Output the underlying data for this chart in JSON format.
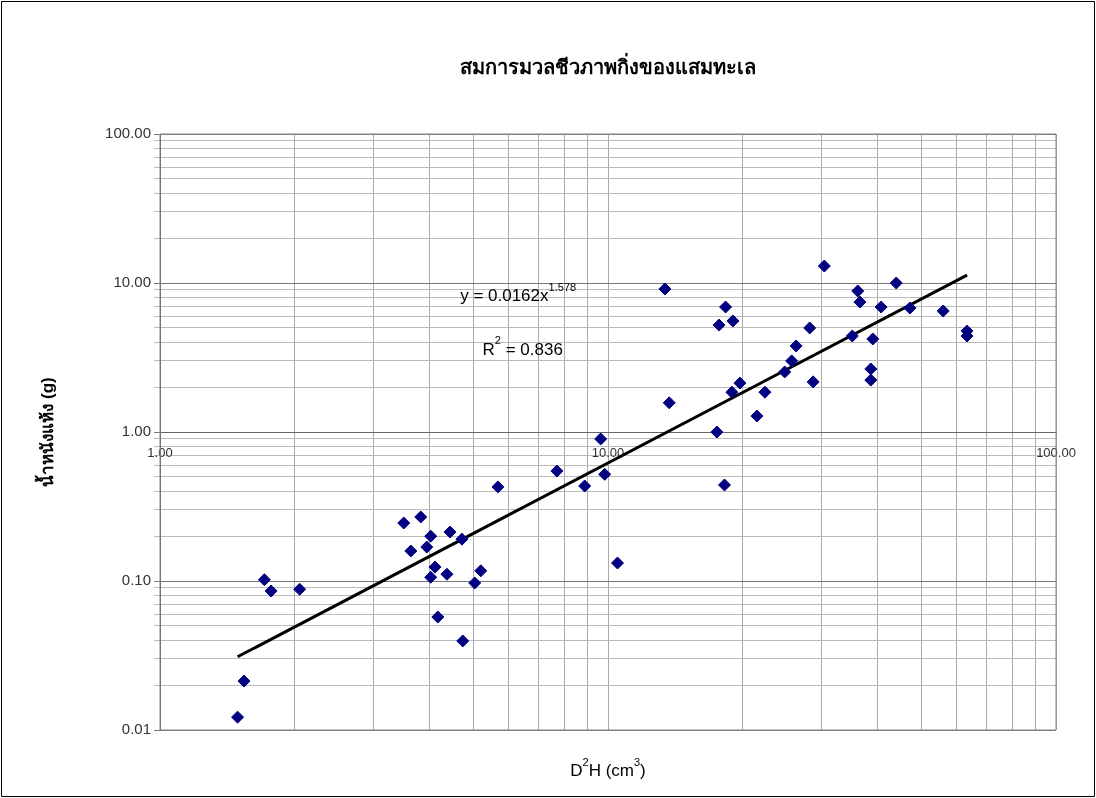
{
  "chart_data": {
    "type": "scatter",
    "title": "สมการมวลชีวภาพกิ่งของแสมทะเล",
    "xlabel": "D$^{2}$H (cm$^{3}$)",
    "ylabel": "น้ำหนังแห้ง (g)",
    "annotations": [
      "y = 0.0162x$^{1.578}$",
      "R$^{2}$ = 0.836"
    ],
    "log": "xy",
    "grid": true,
    "marker": "diamond",
    "legend": false,
    "xlim": [
      1,
      100
    ],
    "ylim": [
      0.01,
      100
    ],
    "xticks": [
      {
        "value": 1,
        "label": "1.00"
      },
      {
        "value": 2,
        "label": null
      },
      {
        "value": 3,
        "label": null
      },
      {
        "value": 4,
        "label": null
      },
      {
        "value": 5,
        "label": null
      },
      {
        "value": 6,
        "label": null
      },
      {
        "value": 7,
        "label": null
      },
      {
        "value": 8,
        "label": null
      },
      {
        "value": 9,
        "label": null
      },
      {
        "value": 10,
        "label": "10.00"
      },
      {
        "value": 20,
        "label": null
      },
      {
        "value": 30,
        "label": null
      },
      {
        "value": 40,
        "label": null
      },
      {
        "value": 50,
        "label": null
      },
      {
        "value": 60,
        "label": null
      },
      {
        "value": 70,
        "label": null
      },
      {
        "value": 80,
        "label": null
      },
      {
        "value": 90,
        "label": null
      },
      {
        "value": 100,
        "label": "100.00"
      }
    ],
    "yticks": [
      {
        "value": 0.01,
        "label": "0.01"
      },
      {
        "value": 0.02,
        "label": null
      },
      {
        "value": 0.03,
        "label": null
      },
      {
        "value": 0.04,
        "label": null
      },
      {
        "value": 0.05,
        "label": null
      },
      {
        "value": 0.06,
        "label": null
      },
      {
        "value": 0.07,
        "label": null
      },
      {
        "value": 0.08,
        "label": null
      },
      {
        "value": 0.09,
        "label": null
      },
      {
        "value": 0.1,
        "label": "0.10"
      },
      {
        "value": 0.2,
        "label": null
      },
      {
        "value": 0.3,
        "label": null
      },
      {
        "value": 0.4,
        "label": null
      },
      {
        "value": 0.5,
        "label": null
      },
      {
        "value": 0.6,
        "label": null
      },
      {
        "value": 0.7,
        "label": null
      },
      {
        "value": 0.8,
        "label": null
      },
      {
        "value": 0.9,
        "label": null
      },
      {
        "value": 1,
        "label": "1.00"
      },
      {
        "value": 2,
        "label": null
      },
      {
        "value": 3,
        "label": null
      },
      {
        "value": 4,
        "label": null
      },
      {
        "value": 5,
        "label": null
      },
      {
        "value": 6,
        "label": null
      },
      {
        "value": 7,
        "label": null
      },
      {
        "value": 8,
        "label": null
      },
      {
        "value": 9,
        "label": null
      },
      {
        "value": 10,
        "label": "10.00"
      },
      {
        "value": 20,
        "label": null
      },
      {
        "value": 30,
        "label": null
      },
      {
        "value": 40,
        "label": null
      },
      {
        "value": 50,
        "label": null
      },
      {
        "value": 60,
        "label": null
      },
      {
        "value": 70,
        "label": null
      },
      {
        "value": 80,
        "label": null
      },
      {
        "value": 90,
        "label": null
      },
      {
        "value": 100,
        "label": "100.00"
      }
    ],
    "series": [
      {
        "color": "#000080",
        "x": [
          1.49,
          1.54,
          1.71,
          1.77,
          2.05,
          3.5,
          3.63,
          3.82,
          3.94,
          4.02,
          4.02,
          4.11,
          4.17,
          4.37,
          4.44,
          4.72,
          4.74,
          5.04,
          5.2,
          5.68,
          7.69,
          8.87,
          9.63,
          9.83,
          10.5,
          13.4,
          13.7,
          17.5,
          17.7,
          18.3,
          18.2,
          19.0,
          18.9,
          19.7,
          22.4,
          21.5,
          24.8,
          25.7,
          26.3,
          28.2,
          28.7,
          30.4,
          36.1,
          36.5,
          35.1,
          39.0,
          40.7,
          44.0,
          47.2,
          38.6,
          38.6,
          56.0,
          63.3,
          63.3
        ],
        "values": [
          0.0122,
          0.0213,
          0.102,
          0.0857,
          0.088,
          0.245,
          0.159,
          0.269,
          0.169,
          0.2,
          0.106,
          0.124,
          0.0573,
          0.111,
          0.213,
          0.191,
          0.0396,
          0.097,
          0.117,
          0.428,
          0.547,
          0.434,
          0.898,
          0.52,
          0.132,
          9.12,
          1.57,
          1.0,
          5.22,
          6.9,
          0.441,
          5.56,
          1.85,
          2.13,
          1.85,
          1.28,
          2.53,
          3.0,
          3.78,
          4.99,
          2.17,
          13.0,
          8.84,
          7.45,
          4.41,
          4.21,
          6.9,
          10.0,
          6.79,
          2.65,
          2.23,
          6.49,
          4.76,
          4.41
        ]
      },
      {
        "type": "line",
        "color": "#000000",
        "marker": "none",
        "x": [
          1.49,
          63.3
        ],
        "values": [
          0.031,
          11.3
        ]
      }
    ]
  }
}
